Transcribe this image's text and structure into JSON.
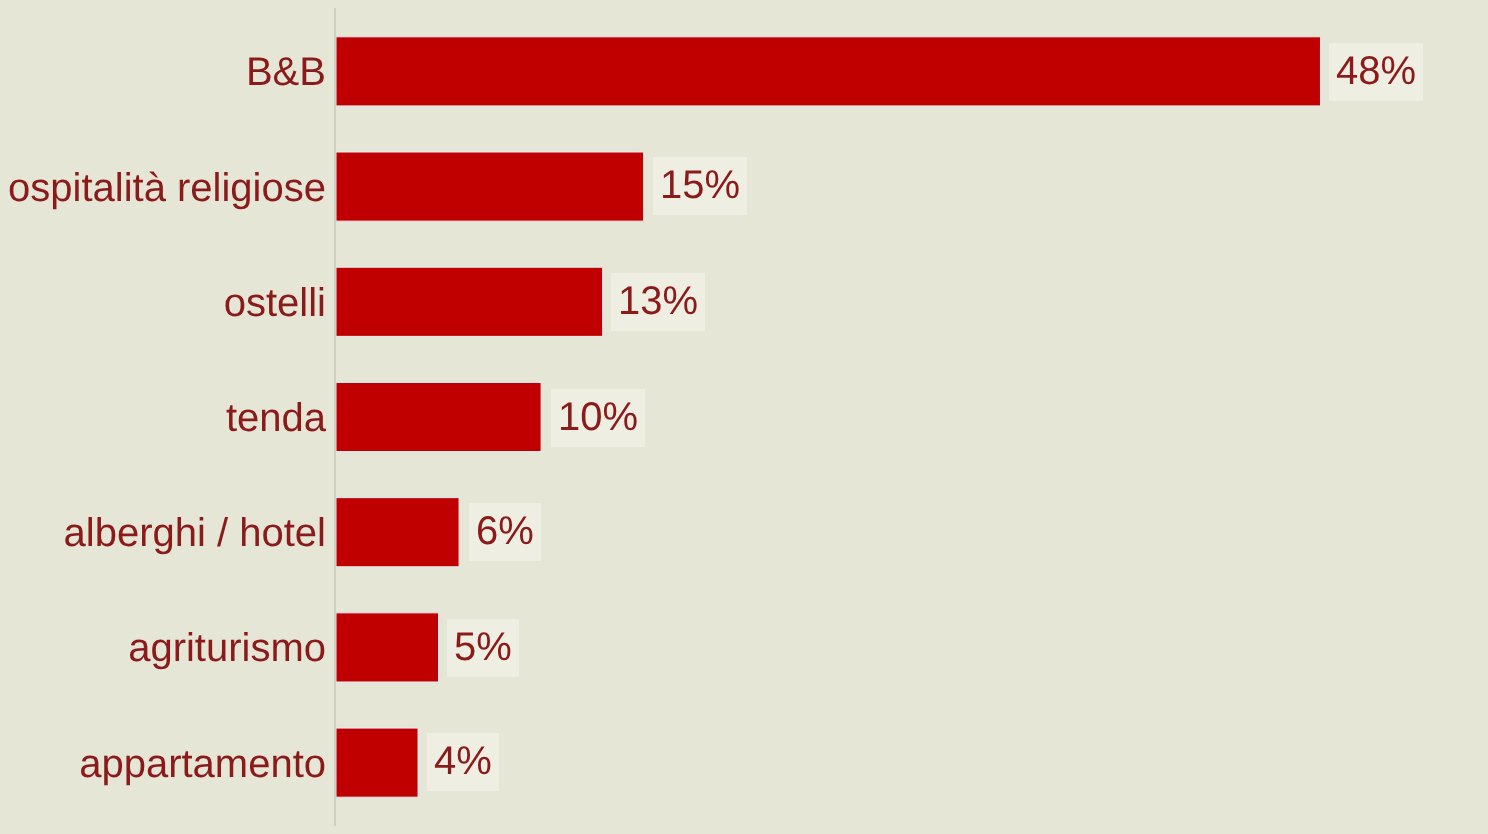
{
  "chart_data": {
    "type": "bar",
    "orientation": "horizontal",
    "categories": [
      "B&B",
      "ospitalità religiose",
      "ostelli",
      "tenda",
      "alberghi / hotel",
      "agriturismo",
      "appartamento"
    ],
    "values": [
      48,
      15,
      13,
      10,
      6,
      5,
      4
    ],
    "value_labels": [
      "48%",
      "15%",
      "13%",
      "10%",
      "6%",
      "5%",
      "4%"
    ],
    "color": "#c00000",
    "grid": false,
    "legend": false
  }
}
